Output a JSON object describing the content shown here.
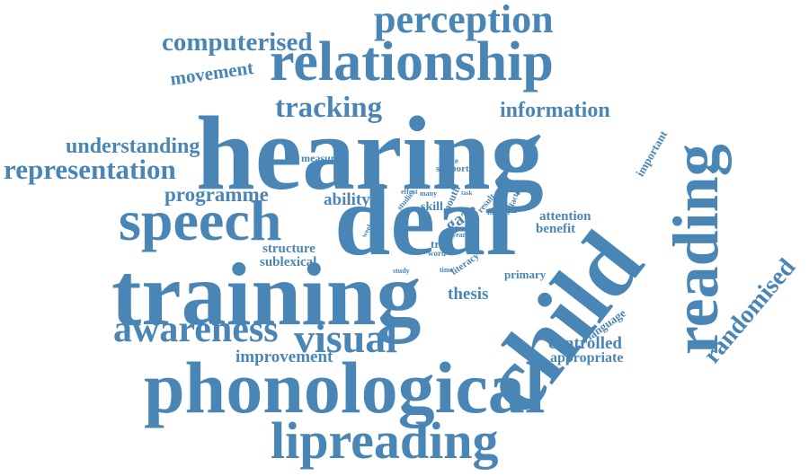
{
  "cloud": {
    "color": "#4a86b5",
    "words": {
      "perception": "perception",
      "computerised": "computerised",
      "relationship": "relationship",
      "movement": "movement",
      "tracking": "tracking",
      "information": "information",
      "hearing": "hearing",
      "reading": "reading",
      "understanding": "understanding",
      "representation": "representation",
      "measure": "measure",
      "relate": "relate",
      "support": "support",
      "important": "important",
      "programme": "programme",
      "ability": "ability",
      "effect": "effect",
      "many": "many",
      "task": "task",
      "studies": "studies",
      "skill": "skill",
      "mouth": "mouth",
      "gaze": "gaze",
      "result": "result",
      "factor": "factor",
      "month": "month",
      "deaf": "deaf",
      "speech": "speech",
      "attention": "attention",
      "benefit": "benefit",
      "acc": "acc",
      "week": "week",
      "year": "year",
      "trial": "trial",
      "word": "word",
      "structure": "structure",
      "sublexical": "sublexical",
      "literacy": "literacy",
      "study": "study",
      "time": "time",
      "primary": "primary",
      "training": "training",
      "thesis": "thesis",
      "child": "child",
      "randomised": "randomised",
      "language": "language",
      "awareness": "awareness",
      "visual": "visual",
      "controlled": "controlled",
      "improvement": "improvement",
      "appropriate": "appropriate",
      "phonological": "phonological",
      "lipreading": "lipreading"
    }
  }
}
